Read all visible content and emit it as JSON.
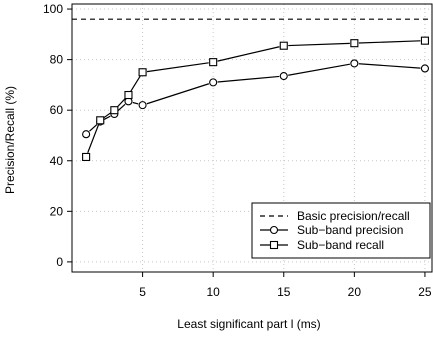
{
  "chart_data": {
    "type": "line",
    "title": "",
    "xlabel": "Least significant part l (ms)",
    "ylabel": "Precision/Recall (%)",
    "xlim": [
      0,
      25.5
    ],
    "ylim": [
      -4,
      102
    ],
    "xticks": [
      5,
      10,
      15,
      20,
      25
    ],
    "yticks": [
      0,
      20,
      40,
      60,
      80,
      100
    ],
    "grid": true,
    "legend_position": "bottom-right",
    "baseline": {
      "name": "Basic precision/recall",
      "value": 96,
      "style": "dashed"
    },
    "series": [
      {
        "name": "Sub−band precision",
        "marker": "circle",
        "x": [
          1,
          2,
          3,
          4,
          5,
          10,
          15,
          20,
          25
        ],
        "y": [
          50.5,
          55.5,
          58.5,
          63.5,
          62,
          71,
          73.5,
          78.5,
          76.5
        ]
      },
      {
        "name": "Sub−band recall",
        "marker": "square",
        "x": [
          1,
          2,
          3,
          4,
          5,
          10,
          15,
          20,
          25
        ],
        "y": [
          41.5,
          56,
          60,
          66,
          75,
          79,
          85.5,
          86.5,
          87.5
        ]
      }
    ]
  }
}
